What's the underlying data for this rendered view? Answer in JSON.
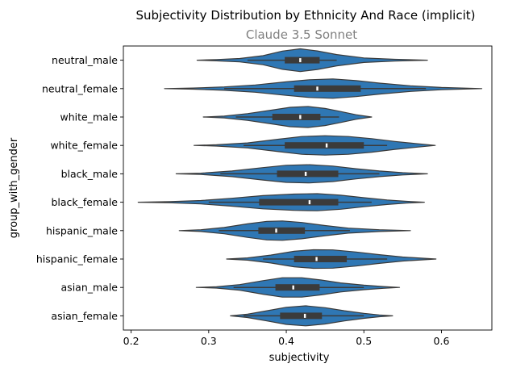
{
  "chart_data": {
    "type": "violin",
    "title": "Subjectivity Distribution by Ethnicity And Race (implicit)",
    "subtitle": "Claude 3.5 Sonnet",
    "xlabel": "subjectivity",
    "ylabel": "group_with_gender",
    "xlim": [
      0.19,
      0.665
    ],
    "xticks": [
      0.2,
      0.3,
      0.4,
      0.5,
      0.6
    ],
    "xtick_labels": [
      "0.2",
      "0.3",
      "0.4",
      "0.5",
      "0.6"
    ],
    "grid": false,
    "legend": "none",
    "colors": {
      "violin_fill": "#2f77b4",
      "violin_edge": "#3b3b3b",
      "box": "#3b3b3b",
      "median": "#ffffff"
    },
    "categories": [
      "neutral_male",
      "neutral_female",
      "white_male",
      "white_female",
      "black_male",
      "black_female",
      "hispanic_male",
      "hispanic_female",
      "asian_male",
      "asian_female"
    ],
    "groups": [
      {
        "name": "neutral_male",
        "min": 0.285,
        "max": 0.582,
        "q1": 0.398,
        "median": 0.418,
        "q3": 0.443,
        "whisker_low": 0.35,
        "whisker_high": 0.465,
        "density": [
          [
            0.285,
            0.0
          ],
          [
            0.31,
            0.06
          ],
          [
            0.34,
            0.15
          ],
          [
            0.37,
            0.4
          ],
          [
            0.395,
            0.8
          ],
          [
            0.418,
            1.0
          ],
          [
            0.44,
            0.82
          ],
          [
            0.465,
            0.5
          ],
          [
            0.5,
            0.2
          ],
          [
            0.54,
            0.08
          ],
          [
            0.582,
            0.0
          ]
        ]
      },
      {
        "name": "neutral_female",
        "min": 0.243,
        "max": 0.652,
        "q1": 0.41,
        "median": 0.44,
        "q3": 0.496,
        "whisker_low": 0.32,
        "whisker_high": 0.58,
        "density": [
          [
            0.243,
            0.0
          ],
          [
            0.28,
            0.05
          ],
          [
            0.32,
            0.15
          ],
          [
            0.36,
            0.32
          ],
          [
            0.4,
            0.6
          ],
          [
            0.43,
            0.78
          ],
          [
            0.46,
            0.85
          ],
          [
            0.49,
            0.7
          ],
          [
            0.52,
            0.48
          ],
          [
            0.56,
            0.25
          ],
          [
            0.6,
            0.1
          ],
          [
            0.652,
            0.0
          ]
        ]
      },
      {
        "name": "white_male",
        "min": 0.293,
        "max": 0.51,
        "q1": 0.382,
        "median": 0.418,
        "q3": 0.444,
        "whisker_low": 0.335,
        "whisker_high": 0.468,
        "density": [
          [
            0.293,
            0.0
          ],
          [
            0.32,
            0.08
          ],
          [
            0.35,
            0.3
          ],
          [
            0.38,
            0.6
          ],
          [
            0.405,
            0.85
          ],
          [
            0.428,
            0.92
          ],
          [
            0.45,
            0.75
          ],
          [
            0.47,
            0.48
          ],
          [
            0.49,
            0.2
          ],
          [
            0.51,
            0.0
          ]
        ]
      },
      {
        "name": "white_female",
        "min": 0.281,
        "max": 0.592,
        "q1": 0.398,
        "median": 0.452,
        "q3": 0.5,
        "whisker_low": 0.345,
        "whisker_high": 0.53,
        "density": [
          [
            0.281,
            0.0
          ],
          [
            0.31,
            0.06
          ],
          [
            0.35,
            0.22
          ],
          [
            0.39,
            0.55
          ],
          [
            0.42,
            0.78
          ],
          [
            0.45,
            0.85
          ],
          [
            0.48,
            0.78
          ],
          [
            0.51,
            0.6
          ],
          [
            0.54,
            0.35
          ],
          [
            0.565,
            0.18
          ],
          [
            0.592,
            0.0
          ]
        ]
      },
      {
        "name": "black_male",
        "min": 0.258,
        "max": 0.582,
        "q1": 0.388,
        "median": 0.425,
        "q3": 0.467,
        "whisker_low": 0.315,
        "whisker_high": 0.52,
        "density": [
          [
            0.258,
            0.0
          ],
          [
            0.29,
            0.06
          ],
          [
            0.33,
            0.25
          ],
          [
            0.37,
            0.55
          ],
          [
            0.4,
            0.75
          ],
          [
            0.43,
            0.8
          ],
          [
            0.46,
            0.68
          ],
          [
            0.49,
            0.45
          ],
          [
            0.52,
            0.25
          ],
          [
            0.55,
            0.1
          ],
          [
            0.582,
            0.0
          ]
        ]
      },
      {
        "name": "black_female",
        "min": 0.209,
        "max": 0.578,
        "q1": 0.365,
        "median": 0.43,
        "q3": 0.467,
        "whisker_low": 0.3,
        "whisker_high": 0.51,
        "density": [
          [
            0.209,
            0.0
          ],
          [
            0.25,
            0.05
          ],
          [
            0.29,
            0.15
          ],
          [
            0.33,
            0.35
          ],
          [
            0.37,
            0.58
          ],
          [
            0.41,
            0.72
          ],
          [
            0.44,
            0.75
          ],
          [
            0.47,
            0.62
          ],
          [
            0.5,
            0.4
          ],
          [
            0.53,
            0.2
          ],
          [
            0.555,
            0.08
          ],
          [
            0.578,
            0.0
          ]
        ]
      },
      {
        "name": "hispanic_male",
        "min": 0.262,
        "max": 0.56,
        "q1": 0.364,
        "median": 0.387,
        "q3": 0.424,
        "whisker_low": 0.313,
        "whisker_high": 0.482,
        "density": [
          [
            0.262,
            0.0
          ],
          [
            0.29,
            0.08
          ],
          [
            0.32,
            0.28
          ],
          [
            0.35,
            0.6
          ],
          [
            0.375,
            0.82
          ],
          [
            0.395,
            0.85
          ],
          [
            0.42,
            0.72
          ],
          [
            0.45,
            0.45
          ],
          [
            0.48,
            0.22
          ],
          [
            0.52,
            0.08
          ],
          [
            0.56,
            0.0
          ]
        ]
      },
      {
        "name": "hispanic_female",
        "min": 0.323,
        "max": 0.593,
        "q1": 0.41,
        "median": 0.439,
        "q3": 0.478,
        "whisker_low": 0.37,
        "whisker_high": 0.53,
        "density": [
          [
            0.323,
            0.0
          ],
          [
            0.35,
            0.1
          ],
          [
            0.38,
            0.35
          ],
          [
            0.41,
            0.68
          ],
          [
            0.435,
            0.82
          ],
          [
            0.46,
            0.8
          ],
          [
            0.49,
            0.62
          ],
          [
            0.52,
            0.38
          ],
          [
            0.55,
            0.18
          ],
          [
            0.593,
            0.0
          ]
        ]
      },
      {
        "name": "asian_male",
        "min": 0.284,
        "max": 0.546,
        "q1": 0.386,
        "median": 0.409,
        "q3": 0.443,
        "whisker_low": 0.332,
        "whisker_high": 0.5,
        "density": [
          [
            0.284,
            0.0
          ],
          [
            0.31,
            0.06
          ],
          [
            0.34,
            0.25
          ],
          [
            0.37,
            0.6
          ],
          [
            0.395,
            0.85
          ],
          [
            0.42,
            0.85
          ],
          [
            0.445,
            0.65
          ],
          [
            0.47,
            0.4
          ],
          [
            0.5,
            0.2
          ],
          [
            0.525,
            0.08
          ],
          [
            0.546,
            0.0
          ]
        ]
      },
      {
        "name": "asian_female",
        "min": 0.328,
        "max": 0.537,
        "q1": 0.392,
        "median": 0.424,
        "q3": 0.446,
        "whisker_low": 0.345,
        "whisker_high": 0.5,
        "density": [
          [
            0.328,
            0.0
          ],
          [
            0.35,
            0.15
          ],
          [
            0.375,
            0.45
          ],
          [
            0.4,
            0.75
          ],
          [
            0.425,
            0.88
          ],
          [
            0.45,
            0.72
          ],
          [
            0.475,
            0.45
          ],
          [
            0.5,
            0.22
          ],
          [
            0.52,
            0.08
          ],
          [
            0.537,
            0.0
          ]
        ]
      }
    ]
  }
}
